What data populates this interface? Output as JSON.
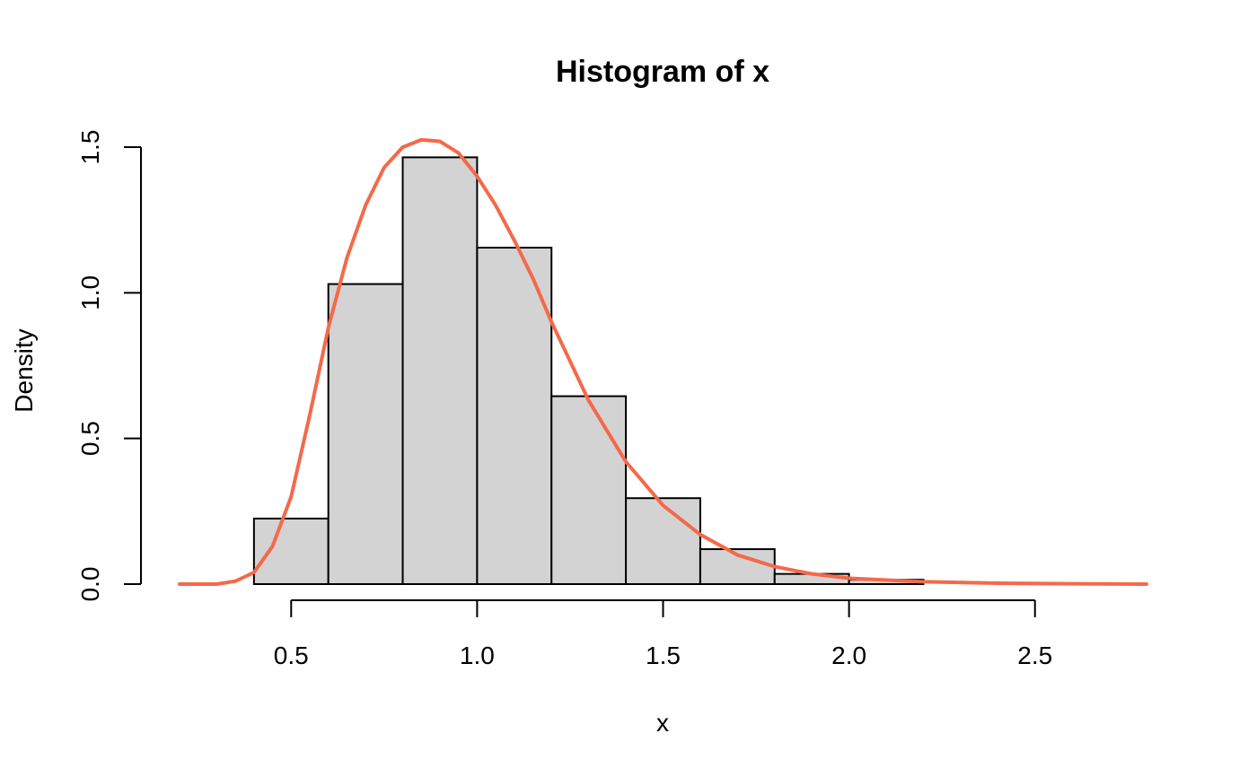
{
  "chart_data": {
    "type": "bar",
    "title": "Histogram of x",
    "xlabel": "x",
    "ylabel": "Density",
    "xlim": [
      0.2,
      2.8
    ],
    "ylim": [
      0,
      1.5
    ],
    "x_ticks": [
      {
        "value": 0.5,
        "label": "0.5"
      },
      {
        "value": 1.0,
        "label": "1.0"
      },
      {
        "value": 1.5,
        "label": "1.5"
      },
      {
        "value": 2.0,
        "label": "2.0"
      },
      {
        "value": 2.5,
        "label": "2.5"
      }
    ],
    "y_ticks": [
      {
        "value": 0.0,
        "label": "0.0"
      },
      {
        "value": 0.5,
        "label": "0.5"
      },
      {
        "value": 1.0,
        "label": "1.0"
      },
      {
        "value": 1.5,
        "label": "1.5"
      }
    ],
    "histogram": {
      "breaks": [
        0.4,
        0.6,
        0.8,
        1.0,
        1.2,
        1.4,
        1.6,
        1.8,
        2.0,
        2.2
      ],
      "density": [
        0.225,
        1.03,
        1.465,
        1.155,
        0.645,
        0.295,
        0.12,
        0.035,
        0.015
      ],
      "fill_color": "#d3d3d3",
      "border_color": "#000000"
    },
    "density_curve": {
      "color": "#f4694a",
      "x": [
        0.2,
        0.3,
        0.35,
        0.4,
        0.45,
        0.5,
        0.55,
        0.6,
        0.65,
        0.7,
        0.75,
        0.8,
        0.85,
        0.9,
        0.95,
        1.0,
        1.05,
        1.1,
        1.15,
        1.2,
        1.3,
        1.4,
        1.5,
        1.6,
        1.7,
        1.8,
        1.9,
        2.0,
        2.2,
        2.4,
        2.6,
        2.8
      ],
      "y": [
        0.0,
        0.0,
        0.01,
        0.04,
        0.13,
        0.3,
        0.58,
        0.88,
        1.12,
        1.3,
        1.43,
        1.5,
        1.525,
        1.52,
        1.48,
        1.4,
        1.3,
        1.18,
        1.05,
        0.9,
        0.63,
        0.42,
        0.27,
        0.17,
        0.1,
        0.06,
        0.035,
        0.02,
        0.008,
        0.003,
        0.001,
        0.0
      ]
    },
    "grid": false,
    "legend": "none"
  }
}
